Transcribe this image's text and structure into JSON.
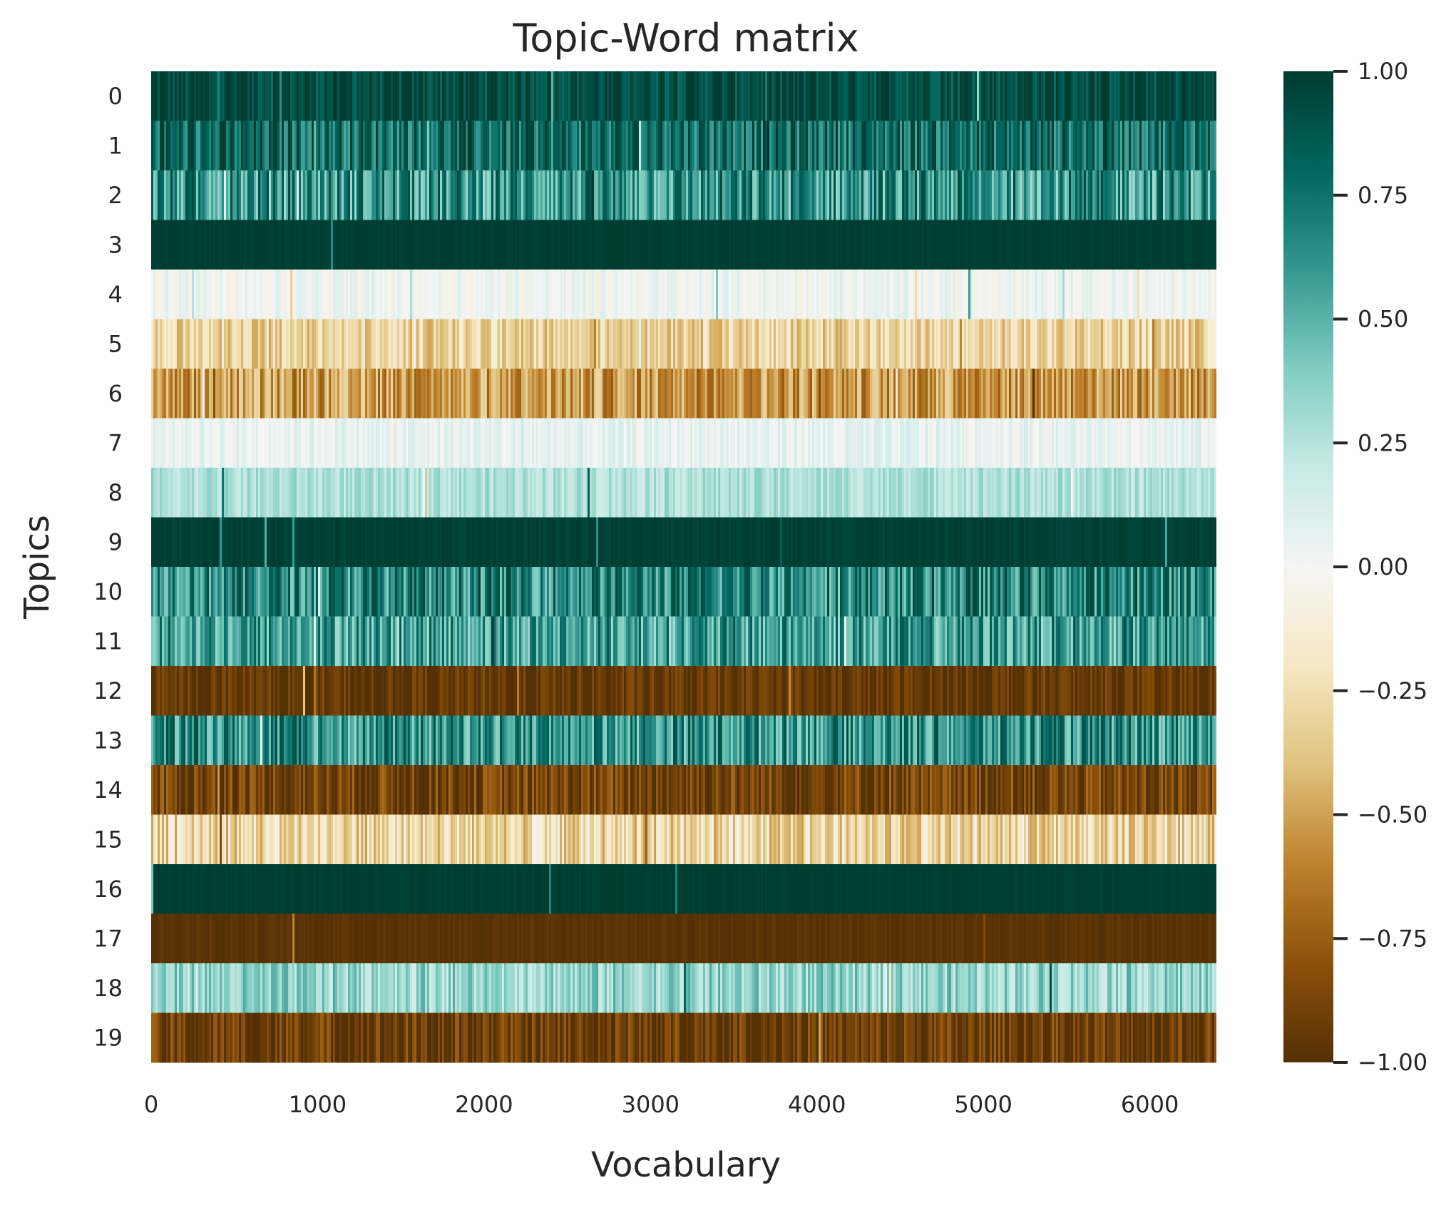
{
  "chart_data": {
    "type": "heatmap",
    "title": "Topic-Word matrix",
    "xlabel": "Vocabulary",
    "ylabel": "Topics",
    "x_range": [
      0,
      6400
    ],
    "x_ticks": [
      0,
      1000,
      2000,
      3000,
      4000,
      5000,
      6000
    ],
    "x_tick_labels": [
      "0",
      "1000",
      "2000",
      "3000",
      "4000",
      "5000",
      "6000"
    ],
    "rows": [
      "0",
      "1",
      "2",
      "3",
      "4",
      "5",
      "6",
      "7",
      "8",
      "9",
      "10",
      "11",
      "12",
      "13",
      "14",
      "15",
      "16",
      "17",
      "18",
      "19"
    ],
    "row_mean_values": [
      0.93,
      0.78,
      0.62,
      0.99,
      0.02,
      -0.3,
      -0.52,
      0.06,
      0.27,
      0.98,
      0.68,
      0.58,
      -0.95,
      0.63,
      -0.88,
      -0.28,
      0.99,
      -0.98,
      0.34,
      -0.92
    ],
    "row_variation": [
      0.1,
      0.15,
      0.2,
      0.01,
      0.06,
      0.12,
      0.15,
      0.06,
      0.07,
      0.02,
      0.18,
      0.18,
      0.08,
      0.18,
      0.12,
      0.15,
      0.01,
      0.02,
      0.12,
      0.12
    ],
    "colorbar": {
      "range": [
        -1.0,
        1.0
      ],
      "ticks": [
        1.0,
        0.75,
        0.5,
        0.25,
        0.0,
        -0.25,
        -0.5,
        -0.75,
        -1.0
      ],
      "tick_labels": [
        "1.00",
        "0.75",
        "0.50",
        "0.25",
        "0.00",
        "−0.25",
        "−0.50",
        "−0.75",
        "−1.00"
      ],
      "colormap": "BrBG",
      "color_stops": [
        "#543005",
        "#8c510a",
        "#bf812d",
        "#dfc27d",
        "#f6e8c3",
        "#f5f5f5",
        "#c7eae5",
        "#80cdc1",
        "#35978f",
        "#01665e",
        "#003c30"
      ]
    },
    "grid": false,
    "legend": "colorbar-right"
  }
}
